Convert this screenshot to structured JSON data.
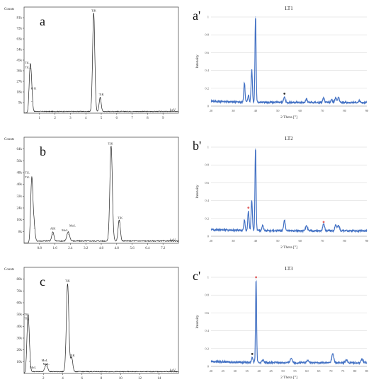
{
  "eds": [
    {
      "panel_label": "a",
      "counts_label": "Counts",
      "kev_label": "keV",
      "yticks": [
        "9k",
        "18k",
        "27k",
        "36k",
        "45k",
        "54k",
        "63k",
        "72k",
        "81k"
      ],
      "ymax": 90,
      "xticks": [
        "1",
        "2",
        "3",
        "4",
        "5",
        "6",
        "7",
        "8",
        "9"
      ],
      "xmin": 0,
      "xmax": 10,
      "peaks": [
        {
          "x": 0.4,
          "h": 38,
          "w": 0.1
        },
        {
          "x": 0.5,
          "h": 10,
          "w": 0.08
        },
        {
          "x": 4.51,
          "h": 84,
          "w": 0.1
        },
        {
          "x": 4.93,
          "h": 12,
          "w": 0.09
        }
      ],
      "labels": [
        {
          "x": 0.05,
          "y": 42,
          "text": "TiL"
        },
        {
          "x": 0.05,
          "y": 38,
          "text": "TiL"
        },
        {
          "x": 0.45,
          "y": 20,
          "text": "O K"
        },
        {
          "x": 4.35,
          "y": 86,
          "text": "TiK"
        },
        {
          "x": 4.85,
          "y": 15,
          "text": "TiK"
        }
      ]
    },
    {
      "panel_label": "b",
      "counts_label": "Counts",
      "kev_label": "keV",
      "yticks": [
        "8k",
        "16k",
        "24k",
        "32k",
        "40k",
        "48k",
        "56k",
        "64k"
      ],
      "ymax": 70,
      "xticks": [
        "0.8",
        "1.6",
        "2.4",
        "3.2",
        "4.0",
        "4.8",
        "5.6",
        "6.4",
        "7.2"
      ],
      "xmin": 0,
      "xmax": 8,
      "peaks": [
        {
          "x": 0.4,
          "h": 42,
          "w": 0.08
        },
        {
          "x": 0.52,
          "h": 10,
          "w": 0.07
        },
        {
          "x": 1.49,
          "h": 6,
          "w": 0.08
        },
        {
          "x": 2.29,
          "h": 6,
          "w": 0.1
        },
        {
          "x": 4.51,
          "h": 63,
          "w": 0.09
        },
        {
          "x": 4.93,
          "h": 14,
          "w": 0.08
        }
      ],
      "labels": [
        {
          "x": 0.05,
          "y": 46,
          "text": "TiL"
        },
        {
          "x": 0.05,
          "y": 43,
          "text": "TiL"
        },
        {
          "x": 1.35,
          "y": 9,
          "text": "AlK"
        },
        {
          "x": 1.95,
          "y": 8,
          "text": "MoL"
        },
        {
          "x": 2.35,
          "y": 11,
          "text": "MoL"
        },
        {
          "x": 4.35,
          "y": 65,
          "text": "TiK"
        },
        {
          "x": 4.85,
          "y": 16,
          "text": "TiK"
        }
      ]
    },
    {
      "panel_label": "c",
      "counts_label": "Counts",
      "kev_label": "keV",
      "yticks": [
        "10k",
        "20k",
        "30k",
        "40k",
        "50k",
        "60k",
        "70k",
        "80k"
      ],
      "ymax": 88,
      "xticks": [
        "2",
        "4",
        "6",
        "8",
        "10",
        "12",
        "14"
      ],
      "xmin": 0,
      "xmax": 16,
      "peaks": [
        {
          "x": 0.4,
          "h": 44,
          "w": 0.16
        },
        {
          "x": 0.55,
          "h": 10,
          "w": 0.14
        },
        {
          "x": 2.3,
          "h": 6,
          "w": 0.2
        },
        {
          "x": 4.51,
          "h": 73,
          "w": 0.18
        },
        {
          "x": 4.93,
          "h": 12,
          "w": 0.16
        }
      ],
      "labels": [
        {
          "x": 0.05,
          "y": 48,
          "text": "TiL"
        },
        {
          "x": 0.05,
          "y": 45,
          "text": "TiL"
        },
        {
          "x": 1.8,
          "y": 10,
          "text": "MoL"
        },
        {
          "x": 1.95,
          "y": 7,
          "text": "MoL"
        },
        {
          "x": 0.6,
          "y": 4,
          "text": "MoL"
        },
        {
          "x": 4.25,
          "y": 76,
          "text": "TiK"
        },
        {
          "x": 4.75,
          "y": 14,
          "text": "TiK"
        }
      ]
    }
  ],
  "xrd": [
    {
      "panel_label": "a'",
      "title": "LT1",
      "xlabel": "2 Theta [°]",
      "ylabel": "Intensity",
      "xticks": [
        20,
        30,
        40,
        50,
        60,
        70,
        80,
        90
      ],
      "yticks": [
        "0",
        "0.2",
        "0.4",
        "0.6",
        "0.8",
        "1"
      ],
      "ylim": [
        0,
        1
      ],
      "xlim": [
        20,
        90
      ],
      "baseline": 0.04,
      "peaks": [
        {
          "x": 35.0,
          "h": 0.22,
          "w": 0.4
        },
        {
          "x": 36.8,
          "h": 0.08,
          "w": 0.4
        },
        {
          "x": 38.3,
          "h": 0.36,
          "w": 0.4
        },
        {
          "x": 40.0,
          "h": 0.96,
          "w": 0.35
        },
        {
          "x": 53.0,
          "h": 0.06,
          "w": 0.5
        },
        {
          "x": 62.9,
          "h": 0.04,
          "w": 0.5
        },
        {
          "x": 70.6,
          "h": 0.05,
          "w": 0.5
        },
        {
          "x": 74.2,
          "h": 0.03,
          "w": 0.5
        },
        {
          "x": 76.0,
          "h": 0.06,
          "w": 0.5
        },
        {
          "x": 77.3,
          "h": 0.06,
          "w": 0.5
        },
        {
          "x": 86.7,
          "h": 0.02,
          "w": 0.5
        }
      ],
      "markers": [
        {
          "x": 53.0,
          "y": 0.14,
          "color": "#333333"
        }
      ]
    },
    {
      "panel_label": "b'",
      "title": "LT2",
      "xlabel": "2 Theta [°]",
      "ylabel": "Intensity",
      "xticks": [
        20,
        30,
        40,
        50,
        60,
        70,
        80,
        90
      ],
      "yticks": [
        "0",
        "0.2",
        "0.4",
        "0.6",
        "0.8",
        "1"
      ],
      "ylim": [
        0,
        1
      ],
      "xlim": [
        20,
        90
      ],
      "baseline": 0.06,
      "peaks": [
        {
          "x": 35.0,
          "h": 0.12,
          "w": 0.4
        },
        {
          "x": 36.8,
          "h": 0.22,
          "w": 0.4
        },
        {
          "x": 38.3,
          "h": 0.34,
          "w": 0.4
        },
        {
          "x": 40.0,
          "h": 0.92,
          "w": 0.35
        },
        {
          "x": 43.2,
          "h": 0.06,
          "w": 0.5
        },
        {
          "x": 53.0,
          "h": 0.12,
          "w": 0.5
        },
        {
          "x": 62.9,
          "h": 0.06,
          "w": 0.6
        },
        {
          "x": 70.6,
          "h": 0.08,
          "w": 0.6
        },
        {
          "x": 76.0,
          "h": 0.07,
          "w": 0.6
        },
        {
          "x": 77.3,
          "h": 0.06,
          "w": 0.6
        }
      ],
      "markers": [
        {
          "x": 36.8,
          "y": 0.32,
          "color": "#e06060"
        },
        {
          "x": 70.6,
          "y": 0.16,
          "color": "#e06060"
        }
      ]
    },
    {
      "panel_label": "c'",
      "title": "LT3",
      "xlabel": "2 Theta [°]",
      "ylabel": "Intensity",
      "xticks": [
        20,
        25,
        30,
        35,
        40,
        45,
        50,
        55,
        60,
        65,
        70,
        75,
        80,
        85
      ],
      "yticks": [
        "0",
        "0.2",
        "0.4",
        "0.6",
        "0.8",
        "1"
      ],
      "ylim": [
        0,
        1
      ],
      "xlim": [
        20,
        85
      ],
      "baseline": 0.04,
      "peaks": [
        {
          "x": 37.2,
          "h": 0.06,
          "w": 0.4
        },
        {
          "x": 38.8,
          "h": 0.94,
          "w": 0.3
        },
        {
          "x": 41.6,
          "h": 0.03,
          "w": 0.5
        },
        {
          "x": 53.5,
          "h": 0.05,
          "w": 0.6
        },
        {
          "x": 60.5,
          "h": 0.03,
          "w": 0.6
        },
        {
          "x": 70.8,
          "h": 0.1,
          "w": 0.6
        },
        {
          "x": 76.5,
          "h": 0.03,
          "w": 0.6
        },
        {
          "x": 83.0,
          "h": 0.04,
          "w": 0.6
        }
      ],
      "markers": [
        {
          "x": 38.8,
          "y": 1.0,
          "color": "#e06060"
        },
        {
          "x": 37.2,
          "y": 0.14,
          "color": "#333333"
        }
      ]
    }
  ],
  "colors": {
    "xrd_line": "#4472c4",
    "eds_line": "#222222"
  }
}
